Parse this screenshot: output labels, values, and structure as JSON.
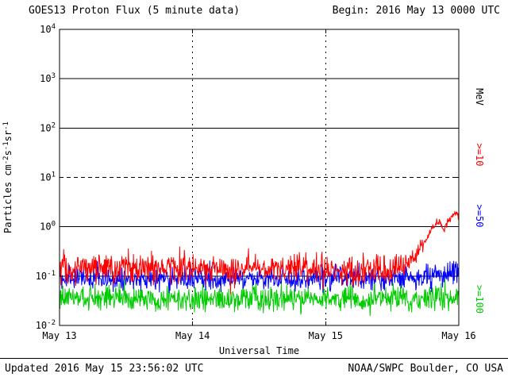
{
  "header": {
    "title": "GOES13 Proton Flux (5 minute data)",
    "begin": "Begin: 2016 May 13 0000 UTC"
  },
  "footer": {
    "updated": "Updated 2016 May 15 23:56:02 UTC",
    "source": "NOAA/SWPC Boulder, CO USA"
  },
  "chart_data": {
    "type": "line",
    "title": "GOES13 Proton Flux (5 minute data)",
    "begin_label": "Begin: 2016 May 13 0000 UTC",
    "xlabel": "Universal Time",
    "ylabel_parts": [
      [
        "t",
        "Particles cm"
      ],
      [
        "sup",
        "-2"
      ],
      [
        "t",
        "s"
      ],
      [
        "sup",
        "-1"
      ],
      [
        "t",
        "sr"
      ],
      [
        "sup",
        "-1"
      ]
    ],
    "y_scale": "log",
    "y_range": [
      0.01,
      10000
    ],
    "y_tick_exponents": [
      4,
      3,
      2,
      1,
      0,
      -1,
      -2
    ],
    "x_range_days": [
      0,
      3
    ],
    "x_ticks": [
      {
        "t": 0,
        "label": "May 13"
      },
      {
        "t": 1,
        "label": "May 14"
      },
      {
        "t": 2,
        "label": "May 15"
      },
      {
        "t": 3,
        "label": "May 16"
      }
    ],
    "grid": {
      "solid_hlines": [
        1000,
        100,
        1,
        0.1
      ],
      "dashed_hlines": [
        10
      ],
      "dotted_vlines_days": [
        1,
        2
      ]
    },
    "right_axis": {
      "unit_label": "MeV",
      "labels": [
        {
          "text": ">=10",
          "color": "#ff0000"
        },
        {
          "text": ">=50",
          "color": "#0000ff"
        },
        {
          "text": ">=100",
          "color": "#00cc00"
        }
      ]
    },
    "sample_interval_minutes": 5,
    "noise_seed": 20160513,
    "series": [
      {
        "name": ">=10 MeV",
        "color": "#ff0000",
        "baseline_points": [
          [
            0,
            0.14
          ],
          [
            0.6,
            0.15
          ],
          [
            1.2,
            0.14
          ],
          [
            1.8,
            0.145
          ],
          [
            2.2,
            0.12
          ],
          [
            2.45,
            0.12
          ],
          [
            2.58,
            0.15
          ],
          [
            2.68,
            0.28
          ],
          [
            2.76,
            0.6
          ],
          [
            2.82,
            1.1
          ],
          [
            2.86,
            1.3
          ],
          [
            2.89,
            0.85
          ],
          [
            2.93,
            1.5
          ],
          [
            2.97,
            1.95
          ],
          [
            3,
            1.65
          ]
        ],
        "noise_sigma_points": [
          [
            0,
            0.15
          ],
          [
            2.5,
            0.15
          ],
          [
            2.65,
            0.1
          ],
          [
            2.75,
            0.05
          ],
          [
            3,
            0.04
          ]
        ]
      },
      {
        "name": ">=50 MeV",
        "color": "#0000ff",
        "baseline_points": [
          [
            0,
            0.09
          ],
          [
            0.8,
            0.088
          ],
          [
            1.6,
            0.09
          ],
          [
            2.3,
            0.088
          ],
          [
            2.7,
            0.092
          ],
          [
            2.9,
            0.1
          ],
          [
            3,
            0.11
          ]
        ],
        "noise_sigma_points": [
          [
            0,
            0.11
          ],
          [
            2.6,
            0.11
          ],
          [
            2.85,
            0.13
          ],
          [
            3,
            0.15
          ]
        ]
      },
      {
        "name": ">=100 MeV",
        "color": "#00cc00",
        "baseline_points": [
          [
            0,
            0.035
          ],
          [
            0.7,
            0.034
          ],
          [
            1.5,
            0.036
          ],
          [
            2.2,
            0.034
          ],
          [
            3,
            0.035
          ]
        ],
        "noise_sigma_points": [
          [
            0,
            0.13
          ],
          [
            3,
            0.13
          ]
        ]
      }
    ]
  }
}
